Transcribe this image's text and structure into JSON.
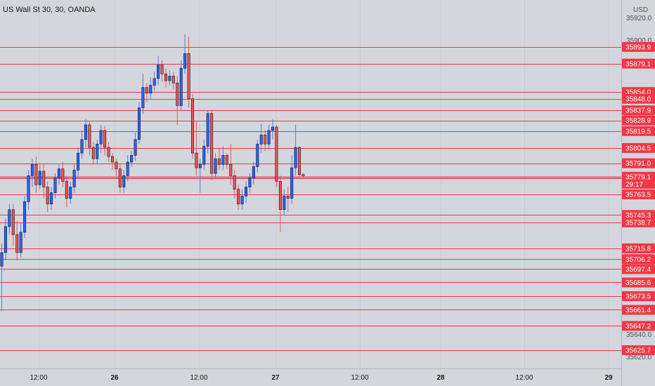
{
  "chart_data": {
    "type": "candlestick",
    "title": "US Wall St 30, 30, OANDA",
    "currency": "USD",
    "y_ticks": [
      35920.0,
      35900.0,
      35640.0,
      35620.0
    ],
    "ylim": [
      35605,
      35930
    ],
    "x_ticks": [
      {
        "label": "12:00",
        "bold": false
      },
      {
        "label": "26",
        "bold": true
      },
      {
        "label": "12:00",
        "bold": false
      },
      {
        "label": "27",
        "bold": true
      },
      {
        "label": "12:00",
        "bold": false
      },
      {
        "label": "28",
        "bold": true
      },
      {
        "label": "12:00",
        "bold": false
      },
      {
        "label": "29",
        "bold": true
      }
    ],
    "levels": [
      "35893.9",
      "35879.1",
      "35854.0",
      "35848.0",
      "35837.9",
      "35828.9",
      "35819.5",
      "35804.5",
      "35791.0",
      "35777.9",
      "35763.5",
      "35745.3",
      "35738.7",
      "35715.8",
      "35706.2",
      "35697.4",
      "35685.6",
      "35673.5",
      "35661.4",
      "35647.2",
      "35625.7"
    ],
    "current_price": {
      "value": "35779.1",
      "countdown": "29:17"
    },
    "candles": [
      [
        35700,
        35712,
        35660,
        35720
      ],
      [
        35712,
        35735,
        35705,
        35742
      ],
      [
        35735,
        35750,
        35728,
        35755
      ],
      [
        35750,
        35728,
        35718,
        35755
      ],
      [
        35728,
        35712,
        35705,
        35740
      ],
      [
        35712,
        35730,
        35708,
        35738
      ],
      [
        35730,
        35757,
        35725,
        35762
      ],
      [
        35757,
        35780,
        35750,
        35785
      ],
      [
        35780,
        35790,
        35770,
        35795
      ],
      [
        35790,
        35772,
        35765,
        35797
      ],
      [
        35772,
        35784,
        35768,
        35790
      ],
      [
        35784,
        35770,
        35760,
        35790
      ],
      [
        35770,
        35755,
        35748,
        35775
      ],
      [
        35755,
        35765,
        35750,
        35770
      ],
      [
        35765,
        35778,
        35760,
        35782
      ],
      [
        35778,
        35786,
        35772,
        35790
      ],
      [
        35786,
        35775,
        35770,
        35792
      ],
      [
        35775,
        35760,
        35752,
        35780
      ],
      [
        35760,
        35770,
        35755,
        35775
      ],
      [
        35770,
        35785,
        35765,
        35790
      ],
      [
        35785,
        35800,
        35778,
        35805
      ],
      [
        35800,
        35812,
        35795,
        35820
      ],
      [
        35812,
        35825,
        35805,
        35830
      ],
      [
        35825,
        35805,
        35798,
        35828
      ],
      [
        35805,
        35795,
        35790,
        35810
      ],
      [
        35795,
        35808,
        35790,
        35812
      ],
      [
        35808,
        35820,
        35800,
        35825
      ],
      [
        35820,
        35805,
        35798,
        35824
      ],
      [
        35805,
        35797,
        35792,
        35810
      ],
      [
        35797,
        35792,
        35785,
        35800
      ],
      [
        35792,
        35786,
        35780,
        35795
      ],
      [
        35786,
        35770,
        35765,
        35790
      ],
      [
        35770,
        35780,
        35765,
        35785
      ],
      [
        35780,
        35792,
        35775,
        35798
      ],
      [
        35792,
        35798,
        35788,
        35802
      ],
      [
        35798,
        35812,
        35793,
        35818
      ],
      [
        35812,
        35840,
        35808,
        35845
      ],
      [
        35840,
        35858,
        35835,
        35870
      ],
      [
        35858,
        35853,
        35845,
        35862
      ],
      [
        35853,
        35860,
        35848,
        35867
      ],
      [
        35860,
        35866,
        35855,
        35872
      ],
      [
        35866,
        35878,
        35860,
        35886
      ],
      [
        35878,
        35870,
        35863,
        35882
      ],
      [
        35870,
        35864,
        35858,
        35875
      ],
      [
        35864,
        35868,
        35860,
        35873
      ],
      [
        35868,
        35862,
        35856,
        35872
      ],
      [
        35862,
        35842,
        35825,
        35868
      ],
      [
        35842,
        35875,
        35838,
        35882
      ],
      [
        35875,
        35888,
        35870,
        35905
      ],
      [
        35888,
        35848,
        35840,
        35903
      ],
      [
        35848,
        35800,
        35795,
        35852
      ],
      [
        35800,
        35787,
        35780,
        35828
      ],
      [
        35787,
        35790,
        35765,
        35795
      ],
      [
        35790,
        35806,
        35785,
        35812
      ],
      [
        35806,
        35835,
        35800,
        35838
      ],
      [
        35835,
        35782,
        35776,
        35837
      ],
      [
        35782,
        35795,
        35778,
        35800
      ],
      [
        35795,
        35790,
        35785,
        35805
      ],
      [
        35790,
        35798,
        35785,
        35806
      ],
      [
        35798,
        35790,
        35786,
        35800
      ],
      [
        35790,
        35780,
        35772,
        35808
      ],
      [
        35780,
        35768,
        35760,
        35785
      ],
      [
        35768,
        35755,
        35750,
        35772
      ],
      [
        35755,
        35762,
        35750,
        35768
      ],
      [
        35762,
        35770,
        35756,
        35775
      ],
      [
        35770,
        35778,
        35765,
        35782
      ],
      [
        35778,
        35788,
        35772,
        35792
      ],
      [
        35788,
        35808,
        35783,
        35812
      ],
      [
        35808,
        35816,
        35800,
        35826
      ],
      [
        35816,
        35808,
        35802,
        35820
      ],
      [
        35808,
        35820,
        35803,
        35825
      ],
      [
        35820,
        35823,
        35812,
        35830
      ],
      [
        35823,
        35775,
        35770,
        35825
      ],
      [
        35775,
        35750,
        35730,
        35780
      ],
      [
        35750,
        35762,
        35745,
        35768
      ],
      [
        35762,
        35760,
        35748,
        35770
      ],
      [
        35760,
        35787,
        35755,
        35798
      ],
      [
        35787,
        35805,
        35780,
        35825
      ],
      [
        35805,
        35781,
        35779,
        35806
      ],
      [
        35781,
        35780,
        35779,
        35782
      ]
    ]
  }
}
